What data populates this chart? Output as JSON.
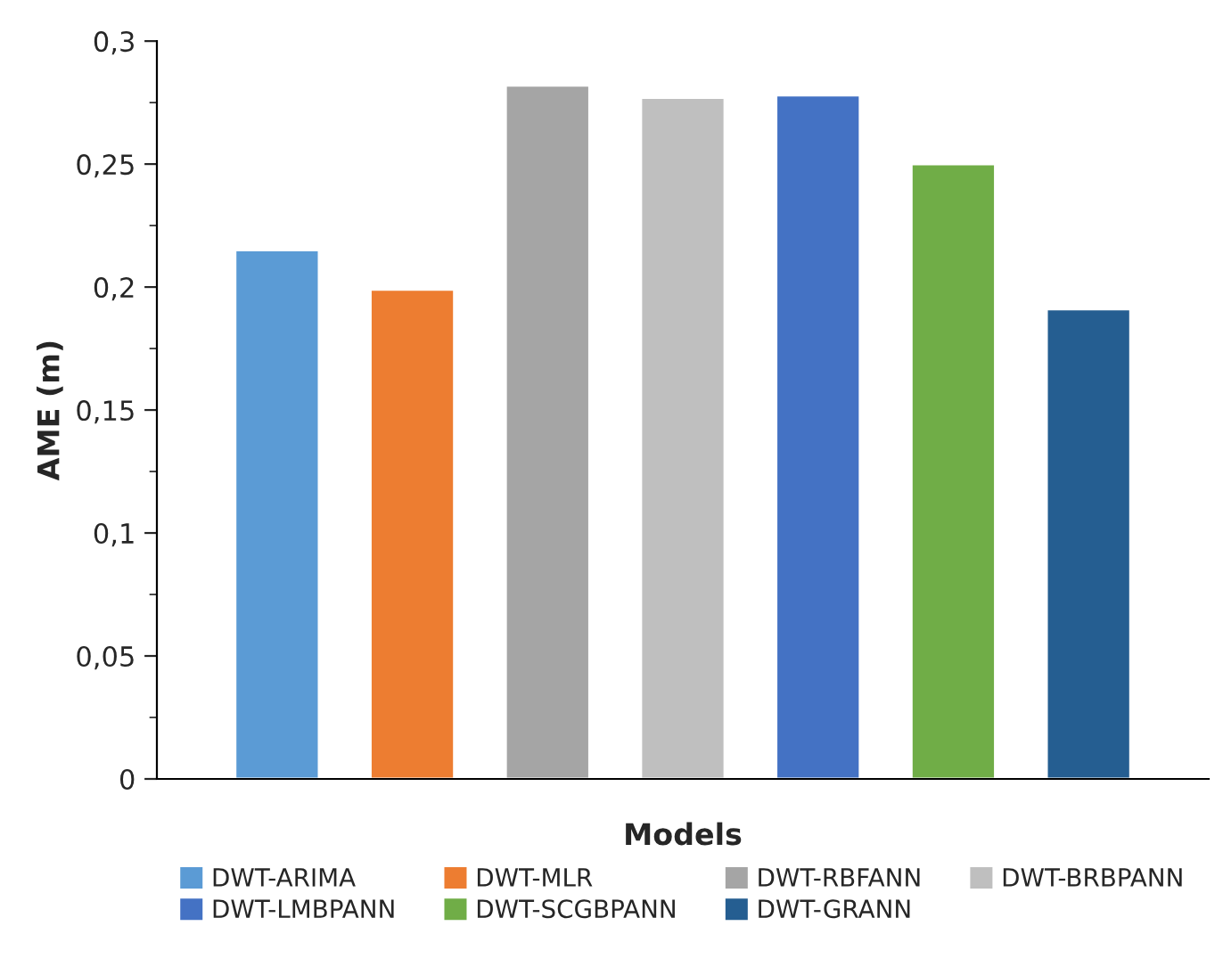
{
  "chart_data": {
    "type": "bar",
    "xlabel": "Models",
    "ylabel": "AME (m)",
    "categories": [
      null
    ],
    "series": [
      {
        "name": "DWT-ARIMA",
        "color": "#5b9bd5",
        "values": [
          0.215
        ]
      },
      {
        "name": "DWT-MLR",
        "color": "#ed7d31",
        "values": [
          0.199
        ]
      },
      {
        "name": "DWT-RBFANN",
        "color": "#a5a5a5",
        "values": [
          0.282
        ]
      },
      {
        "name": "DWT-BRBPANN",
        "color": "#bfbfbf",
        "values": [
          0.277
        ]
      },
      {
        "name": "DWT-LMBPANN",
        "color": "#4472c4",
        "values": [
          0.278
        ]
      },
      {
        "name": "DWT-SCGBPANN",
        "color": "#70ad47",
        "values": [
          0.25
        ]
      },
      {
        "name": "DWT-GRANN",
        "color": "#255e91",
        "values": [
          0.191
        ]
      }
    ],
    "ylim": [
      0,
      0.3
    ],
    "yticks": [
      {
        "value": 0,
        "label": "0"
      },
      {
        "value": 0.05,
        "label": "0,05"
      },
      {
        "value": 0.1,
        "label": "0,1"
      },
      {
        "value": 0.15,
        "label": "0,15"
      },
      {
        "value": 0.2,
        "label": "0,2"
      },
      {
        "value": 0.25,
        "label": "0,25"
      },
      {
        "value": 0.3,
        "label": "0,3"
      }
    ],
    "grid": false,
    "legend": "bottom"
  }
}
